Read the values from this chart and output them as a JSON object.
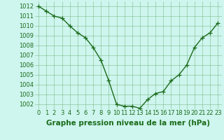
{
  "x": [
    0,
    1,
    2,
    3,
    4,
    5,
    6,
    7,
    8,
    9,
    10,
    11,
    12,
    13,
    14,
    15,
    16,
    17,
    18,
    19,
    20,
    21,
    22,
    23
  ],
  "y": [
    1012,
    1011.5,
    1011,
    1010.8,
    1010,
    1009.3,
    1008.8,
    1007.8,
    1006.5,
    1004.4,
    1002.0,
    1001.8,
    1001.8,
    1001.6,
    1002.5,
    1003.1,
    1003.3,
    1004.4,
    1005.0,
    1006.0,
    1007.8,
    1008.8,
    1009.3,
    1010.3
  ],
  "line_color": "#1a6b1a",
  "marker": "+",
  "marker_color": "#1a6b1a",
  "bg_color": "#cef5ee",
  "grid_color": "#4a9a4a",
  "xlabel": "Graphe pression niveau de la mer (hPa)",
  "xlabel_color": "#1a6b1a",
  "xlabel_fontsize": 7.5,
  "tick_color": "#1a6b1a",
  "tick_fontsize": 6,
  "ylim": [
    1001.5,
    1012.5
  ],
  "xlim": [
    -0.5,
    23.5
  ],
  "yticks": [
    1002,
    1003,
    1004,
    1005,
    1006,
    1007,
    1008,
    1009,
    1010,
    1011,
    1012
  ],
  "xticks": [
    0,
    1,
    2,
    3,
    4,
    5,
    6,
    7,
    8,
    9,
    10,
    11,
    12,
    13,
    14,
    15,
    16,
    17,
    18,
    19,
    20,
    21,
    22,
    23
  ],
  "linewidth": 1.0,
  "markersize": 4
}
